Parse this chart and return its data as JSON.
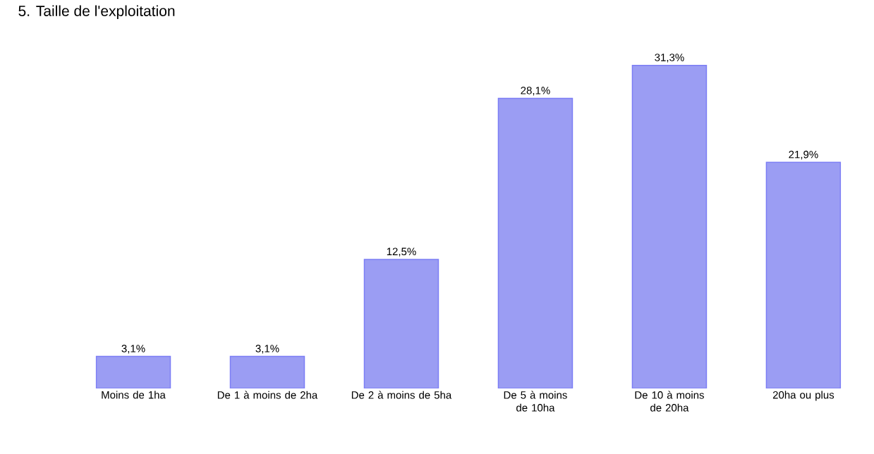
{
  "chart_data": {
    "type": "bar",
    "title": "5. Taille de l'exploitation",
    "categories": [
      "Moins de 1ha",
      "De 1 à moins de 2ha",
      "De 2 à moins de 5ha",
      "De 5 à moins de 10ha",
      "De 10 à moins de 20ha",
      "20ha ou plus"
    ],
    "values": [
      3.1,
      3.1,
      12.5,
      28.1,
      31.3,
      21.9
    ],
    "value_labels": [
      "3,1%",
      "3,1%",
      "12,5%",
      "28,1%",
      "31,3%",
      "21,9%"
    ],
    "color": "#9b9df3"
  }
}
